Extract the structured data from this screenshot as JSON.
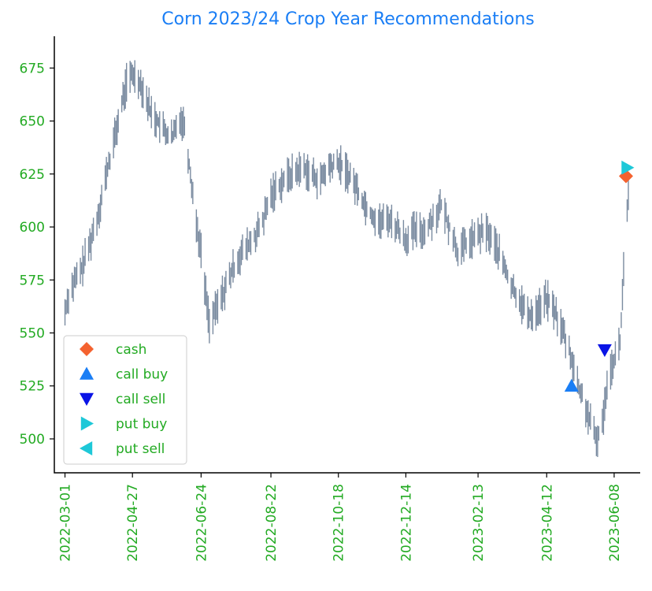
{
  "chart_data": {
    "type": "line",
    "title": "Corn 2023/24 Crop Year Recommendations",
    "xlabel": "",
    "ylabel": "",
    "x_type": "date",
    "xlim": [
      "2022-02-20",
      "2023-06-30"
    ],
    "ylim": [
      484,
      690
    ],
    "x_ticks": [
      "2022-03-01",
      "2022-04-27",
      "2022-06-24",
      "2022-08-22",
      "2022-10-18",
      "2022-12-14",
      "2023-02-13",
      "2023-04-12",
      "2023-06-08"
    ],
    "y_ticks": [
      500,
      525,
      550,
      575,
      600,
      625,
      650,
      675
    ],
    "grid": false,
    "legend_position": "lower-left",
    "colors": {
      "price_line": "#7a8ba0",
      "title": "#1a7ef5",
      "tick_labels": "#22aa22",
      "cash": "#f4622f",
      "call_buy": "#1a7ef5",
      "call_sell": "#0a14e6",
      "put_buy": "#1ec8d8",
      "put_sell": "#1ec8d8"
    },
    "series": [
      {
        "style": "high-low daily bars",
        "x": [
          "2022-03-01",
          "2022-03-04",
          "2022-03-08",
          "2022-03-15",
          "2022-03-22",
          "2022-03-29",
          "2022-04-05",
          "2022-04-12",
          "2022-04-18",
          "2022-04-22",
          "2022-04-27",
          "2022-05-02",
          "2022-05-06",
          "2022-05-12",
          "2022-05-18",
          "2022-05-24",
          "2022-05-31",
          "2022-06-06",
          "2022-06-10",
          "2022-06-15",
          "2022-06-20",
          "2022-06-24",
          "2022-06-28",
          "2022-07-01",
          "2022-07-06",
          "2022-07-12",
          "2022-07-18",
          "2022-07-25",
          "2022-08-01",
          "2022-08-08",
          "2022-08-15",
          "2022-08-22",
          "2022-08-29",
          "2022-09-06",
          "2022-09-12",
          "2022-09-19",
          "2022-09-26",
          "2022-10-03",
          "2022-10-10",
          "2022-10-18",
          "2022-10-25",
          "2022-11-01",
          "2022-11-08",
          "2022-11-15",
          "2022-11-22",
          "2022-11-29",
          "2022-12-06",
          "2022-12-14",
          "2022-12-21",
          "2022-12-29",
          "2023-01-06",
          "2023-01-13",
          "2023-01-20",
          "2023-01-27",
          "2023-02-03",
          "2023-02-13",
          "2023-02-20",
          "2023-02-27",
          "2023-03-06",
          "2023-03-13",
          "2023-03-20",
          "2023-03-27",
          "2023-04-03",
          "2023-04-12",
          "2023-04-19",
          "2023-04-26",
          "2023-05-03",
          "2023-05-09",
          "2023-05-15",
          "2023-05-19",
          "2023-05-24",
          "2023-05-30",
          "2023-06-02",
          "2023-06-08",
          "2023-06-13",
          "2023-06-16",
          "2023-06-20"
        ],
        "values": [
          560,
          568,
          573,
          580,
          592,
          606,
          625,
          642,
          658,
          668,
          672,
          670,
          665,
          655,
          650,
          645,
          642,
          652,
          648,
          625,
          602,
          588,
          568,
          555,
          560,
          568,
          576,
          585,
          590,
          595,
          602,
          615,
          620,
          624,
          626,
          628,
          624,
          622,
          628,
          630,
          626,
          620,
          612,
          606,
          602,
          604,
          600,
          594,
          598,
          598,
          604,
          610,
          600,
          588,
          592,
          596,
          598,
          592,
          583,
          572,
          566,
          558,
          560,
          566,
          560,
          550,
          538,
          524,
          515,
          507,
          499,
          510,
          528,
          538,
          545,
          580,
          614
        ]
      }
    ],
    "markers": [
      {
        "type": "call sell",
        "x": "2023-05-31",
        "y": 542
      },
      {
        "type": "call buy",
        "x": "2023-05-03",
        "y": 525
      },
      {
        "type": "cash",
        "x": "2023-06-18",
        "y": 624
      },
      {
        "type": "put buy",
        "x": "2023-06-19",
        "y": 628
      }
    ],
    "legend": [
      {
        "label": "cash",
        "marker": "diamond",
        "color_key": "cash"
      },
      {
        "label": "call buy",
        "marker": "triangle-up",
        "color_key": "call_buy"
      },
      {
        "label": "call sell",
        "marker": "triangle-down",
        "color_key": "call_sell"
      },
      {
        "label": "put buy",
        "marker": "triangle-right",
        "color_key": "put_buy"
      },
      {
        "label": "put sell",
        "marker": "triangle-left",
        "color_key": "put_sell"
      }
    ]
  }
}
